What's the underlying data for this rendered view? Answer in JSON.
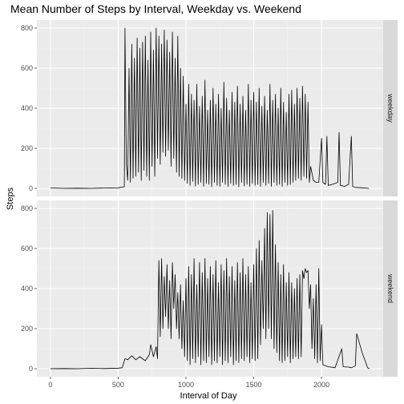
{
  "chart_data": {
    "type": "line",
    "title": "Mean Number of Steps by Interval, Weekday vs. Weekend",
    "xlabel": "Interval of Day",
    "ylabel": "Steps",
    "xlim": [
      -100,
      2455
    ],
    "ylim": [
      -40,
      840
    ],
    "x_ticks": [
      0,
      500,
      1000,
      1500,
      2000
    ],
    "y_ticks": [
      0,
      200,
      400,
      600,
      800
    ],
    "facet_variable": "day type",
    "grid": true,
    "legend": "none",
    "colors": {
      "panel_bg": "#ebebeb",
      "grid_major": "#ffffff",
      "grid_minor": "#f4f4f4",
      "strip_bg": "#d9d9d9",
      "line": "#000000"
    },
    "panels": [
      {
        "label": "weekday",
        "points": [
          [
            0,
            2
          ],
          [
            100,
            0
          ],
          [
            200,
            1
          ],
          [
            300,
            0
          ],
          [
            400,
            2
          ],
          [
            500,
            3
          ],
          [
            545,
            8
          ],
          [
            550,
            800
          ],
          [
            560,
            120
          ],
          [
            570,
            40
          ],
          [
            580,
            600
          ],
          [
            590,
            30
          ],
          [
            600,
            720
          ],
          [
            610,
            50
          ],
          [
            620,
            650
          ],
          [
            630,
            60
          ],
          [
            640,
            750
          ],
          [
            650,
            80
          ],
          [
            660,
            700
          ],
          [
            670,
            40
          ],
          [
            680,
            730
          ],
          [
            690,
            90
          ],
          [
            700,
            760
          ],
          [
            710,
            60
          ],
          [
            720,
            640
          ],
          [
            730,
            40
          ],
          [
            740,
            780
          ],
          [
            750,
            110
          ],
          [
            760,
            690
          ],
          [
            770,
            60
          ],
          [
            780,
            800
          ],
          [
            790,
            150
          ],
          [
            800,
            760
          ],
          [
            810,
            120
          ],
          [
            820,
            720
          ],
          [
            830,
            180
          ],
          [
            840,
            790
          ],
          [
            850,
            160
          ],
          [
            860,
            740
          ],
          [
            870,
            190
          ],
          [
            880,
            680
          ],
          [
            890,
            110
          ],
          [
            900,
            780
          ],
          [
            910,
            150
          ],
          [
            920,
            650
          ],
          [
            930,
            80
          ],
          [
            940,
            760
          ],
          [
            950,
            60
          ],
          [
            960,
            600
          ],
          [
            970,
            50
          ],
          [
            980,
            560
          ],
          [
            990,
            40
          ],
          [
            1000,
            420
          ],
          [
            1010,
            25
          ],
          [
            1020,
            520
          ],
          [
            1030,
            15
          ],
          [
            1040,
            470
          ],
          [
            1050,
            35
          ],
          [
            1060,
            440
          ],
          [
            1070,
            12
          ],
          [
            1080,
            520
          ],
          [
            1090,
            20
          ],
          [
            1100,
            410
          ],
          [
            1110,
            30
          ],
          [
            1120,
            460
          ],
          [
            1130,
            10
          ],
          [
            1140,
            540
          ],
          [
            1150,
            25
          ],
          [
            1160,
            390
          ],
          [
            1170,
            20
          ],
          [
            1180,
            440
          ],
          [
            1190,
            8
          ],
          [
            1200,
            500
          ],
          [
            1210,
            30
          ],
          [
            1220,
            420
          ],
          [
            1230,
            15
          ],
          [
            1240,
            470
          ],
          [
            1250,
            10
          ],
          [
            1260,
            400
          ],
          [
            1270,
            30
          ],
          [
            1280,
            530
          ],
          [
            1290,
            20
          ],
          [
            1300,
            450
          ],
          [
            1310,
            10
          ],
          [
            1320,
            390
          ],
          [
            1330,
            25
          ],
          [
            1340,
            480
          ],
          [
            1350,
            15
          ],
          [
            1360,
            430
          ],
          [
            1370,
            20
          ],
          [
            1380,
            510
          ],
          [
            1390,
            8
          ],
          [
            1400,
            420
          ],
          [
            1410,
            30
          ],
          [
            1420,
            460
          ],
          [
            1430,
            12
          ],
          [
            1440,
            390
          ],
          [
            1450,
            20
          ],
          [
            1460,
            520
          ],
          [
            1470,
            10
          ],
          [
            1480,
            440
          ],
          [
            1490,
            25
          ],
          [
            1500,
            480
          ],
          [
            1510,
            15
          ],
          [
            1520,
            430
          ],
          [
            1530,
            20
          ],
          [
            1540,
            500
          ],
          [
            1550,
            10
          ],
          [
            1560,
            410
          ],
          [
            1570,
            30
          ],
          [
            1580,
            460
          ],
          [
            1590,
            15
          ],
          [
            1600,
            390
          ],
          [
            1610,
            25
          ],
          [
            1620,
            520
          ],
          [
            1630,
            10
          ],
          [
            1640,
            440
          ],
          [
            1650,
            30
          ],
          [
            1660,
            470
          ],
          [
            1670,
            15
          ],
          [
            1680,
            400
          ],
          [
            1690,
            20
          ],
          [
            1700,
            500
          ],
          [
            1710,
            10
          ],
          [
            1720,
            430
          ],
          [
            1730,
            30
          ],
          [
            1740,
            380
          ],
          [
            1750,
            15
          ],
          [
            1760,
            470
          ],
          [
            1770,
            20
          ],
          [
            1780,
            490
          ],
          [
            1790,
            30
          ],
          [
            1800,
            420
          ],
          [
            1810,
            40
          ],
          [
            1820,
            500
          ],
          [
            1830,
            50
          ],
          [
            1840,
            450
          ],
          [
            1850,
            40
          ],
          [
            1860,
            510
          ],
          [
            1870,
            60
          ],
          [
            1880,
            470
          ],
          [
            1890,
            50
          ],
          [
            1900,
            430
          ],
          [
            1910,
            30
          ],
          [
            1920,
            110
          ],
          [
            1940,
            40
          ],
          [
            1960,
            30
          ],
          [
            1980,
            30
          ],
          [
            2000,
            250
          ],
          [
            2010,
            30
          ],
          [
            2030,
            20
          ],
          [
            2040,
            260
          ],
          [
            2050,
            15
          ],
          [
            2080,
            20
          ],
          [
            2120,
            30
          ],
          [
            2130,
            280
          ],
          [
            2140,
            15
          ],
          [
            2170,
            10
          ],
          [
            2200,
            20
          ],
          [
            2220,
            260
          ],
          [
            2230,
            10
          ],
          [
            2250,
            5
          ],
          [
            2300,
            3
          ],
          [
            2350,
            0
          ]
        ]
      },
      {
        "label": "weekend",
        "points": [
          [
            0,
            0
          ],
          [
            100,
            1
          ],
          [
            200,
            0
          ],
          [
            300,
            2
          ],
          [
            400,
            1
          ],
          [
            500,
            3
          ],
          [
            530,
            5
          ],
          [
            550,
            50
          ],
          [
            570,
            45
          ],
          [
            600,
            65
          ],
          [
            630,
            45
          ],
          [
            660,
            60
          ],
          [
            700,
            40
          ],
          [
            730,
            70
          ],
          [
            740,
            120
          ],
          [
            760,
            60
          ],
          [
            780,
            110
          ],
          [
            790,
            50
          ],
          [
            800,
            540
          ],
          [
            810,
            160
          ],
          [
            820,
            550
          ],
          [
            830,
            200
          ],
          [
            840,
            460
          ],
          [
            850,
            260
          ],
          [
            860,
            520
          ],
          [
            870,
            200
          ],
          [
            880,
            440
          ],
          [
            890,
            150
          ],
          [
            900,
            530
          ],
          [
            910,
            300
          ],
          [
            920,
            470
          ],
          [
            930,
            200
          ],
          [
            940,
            380
          ],
          [
            950,
            150
          ],
          [
            960,
            420
          ],
          [
            970,
            100
          ],
          [
            980,
            340
          ],
          [
            990,
            60
          ],
          [
            1000,
            450
          ],
          [
            1010,
            40
          ],
          [
            1020,
            510
          ],
          [
            1030,
            20
          ],
          [
            1040,
            470
          ],
          [
            1050,
            50
          ],
          [
            1060,
            550
          ],
          [
            1070,
            30
          ],
          [
            1080,
            420
          ],
          [
            1090,
            60
          ],
          [
            1100,
            530
          ],
          [
            1110,
            20
          ],
          [
            1120,
            480
          ],
          [
            1130,
            40
          ],
          [
            1140,
            550
          ],
          [
            1150,
            30
          ],
          [
            1160,
            450
          ],
          [
            1170,
            60
          ],
          [
            1180,
            510
          ],
          [
            1190,
            20
          ],
          [
            1200,
            470
          ],
          [
            1210,
            40
          ],
          [
            1220,
            540
          ],
          [
            1230,
            30
          ],
          [
            1240,
            430
          ],
          [
            1250,
            60
          ],
          [
            1260,
            520
          ],
          [
            1270,
            20
          ],
          [
            1280,
            490
          ],
          [
            1290,
            40
          ],
          [
            1300,
            550
          ],
          [
            1310,
            30
          ],
          [
            1320,
            460
          ],
          [
            1330,
            60
          ],
          [
            1340,
            510
          ],
          [
            1350,
            20
          ],
          [
            1360,
            440
          ],
          [
            1370,
            40
          ],
          [
            1380,
            530
          ],
          [
            1390,
            30
          ],
          [
            1400,
            480
          ],
          [
            1410,
            50
          ],
          [
            1420,
            550
          ],
          [
            1430,
            40
          ],
          [
            1440,
            470
          ],
          [
            1450,
            60
          ],
          [
            1460,
            510
          ],
          [
            1470,
            30
          ],
          [
            1480,
            430
          ],
          [
            1490,
            50
          ],
          [
            1500,
            520
          ],
          [
            1510,
            40
          ],
          [
            1520,
            600
          ],
          [
            1530,
            50
          ],
          [
            1540,
            640
          ],
          [
            1550,
            120
          ],
          [
            1560,
            540
          ],
          [
            1570,
            200
          ],
          [
            1580,
            700
          ],
          [
            1590,
            150
          ],
          [
            1600,
            780
          ],
          [
            1610,
            200
          ],
          [
            1620,
            770
          ],
          [
            1630,
            150
          ],
          [
            1640,
            790
          ],
          [
            1650,
            100
          ],
          [
            1660,
            620
          ],
          [
            1670,
            80
          ],
          [
            1680,
            530
          ],
          [
            1690,
            40
          ],
          [
            1700,
            470
          ],
          [
            1710,
            30
          ],
          [
            1720,
            520
          ],
          [
            1730,
            40
          ],
          [
            1740,
            430
          ],
          [
            1750,
            60
          ],
          [
            1760,
            480
          ],
          [
            1770,
            30
          ],
          [
            1780,
            430
          ],
          [
            1790,
            50
          ],
          [
            1800,
            400
          ],
          [
            1810,
            60
          ],
          [
            1820,
            450
          ],
          [
            1830,
            50
          ],
          [
            1840,
            470
          ],
          [
            1850,
            60
          ],
          [
            1860,
            490
          ],
          [
            1870,
            450
          ],
          [
            1880,
            500
          ],
          [
            1890,
            480
          ],
          [
            1900,
            490
          ],
          [
            1910,
            300
          ],
          [
            1920,
            420
          ],
          [
            1930,
            100
          ],
          [
            1940,
            350
          ],
          [
            1950,
            50
          ],
          [
            1960,
            420
          ],
          [
            1970,
            30
          ],
          [
            1980,
            500
          ],
          [
            1990,
            40
          ],
          [
            2000,
            220
          ],
          [
            2010,
            20
          ],
          [
            2050,
            10
          ],
          [
            2100,
            5
          ],
          [
            2150,
            100
          ],
          [
            2160,
            10
          ],
          [
            2200,
            8
          ],
          [
            2220,
            5
          ],
          [
            2250,
            15
          ],
          [
            2260,
            175
          ],
          [
            2300,
            80
          ],
          [
            2340,
            5
          ],
          [
            2355,
            0
          ]
        ]
      }
    ]
  }
}
